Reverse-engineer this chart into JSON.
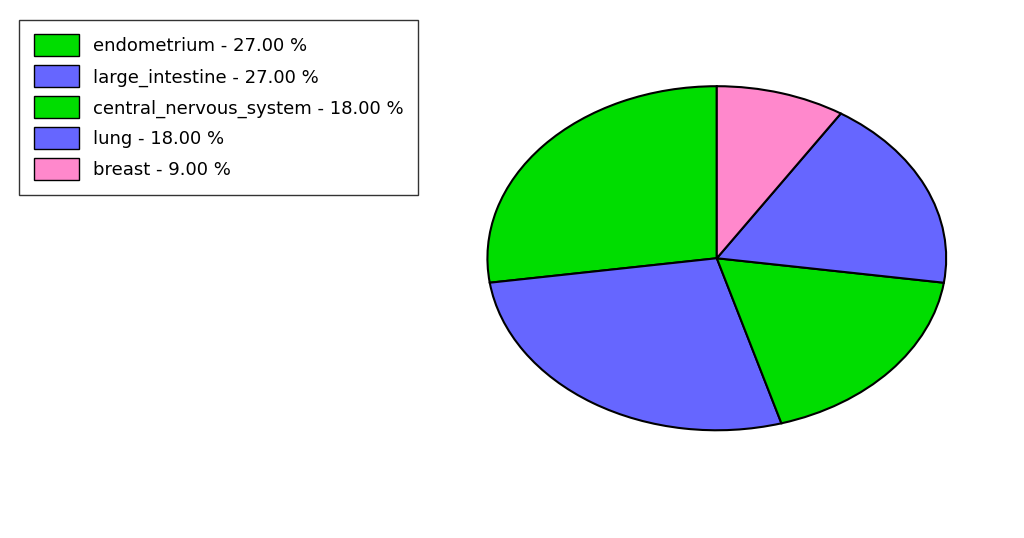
{
  "labels": [
    "endometrium",
    "large_intestine",
    "central_nervous_system",
    "lung",
    "breast"
  ],
  "values": [
    27.0,
    27.0,
    18.0,
    18.0,
    9.0
  ],
  "colors": [
    "#00dd00",
    "#6666ff",
    "#00dd00",
    "#6666ff",
    "#ff88cc"
  ],
  "legend_labels": [
    "endometrium - 27.00 %",
    "large_intestine - 27.00 %",
    "central_nervous_system - 18.00 %",
    "lung - 18.00 %",
    "breast - 9.00 %"
  ],
  "legend_colors": [
    "#00dd00",
    "#6666ff",
    "#00dd00",
    "#6666ff",
    "#ff88cc"
  ],
  "startangle": 90,
  "figsize": [
    10.24,
    5.38
  ],
  "dpi": 100,
  "background_color": "#ffffff",
  "legend_fontsize": 13
}
